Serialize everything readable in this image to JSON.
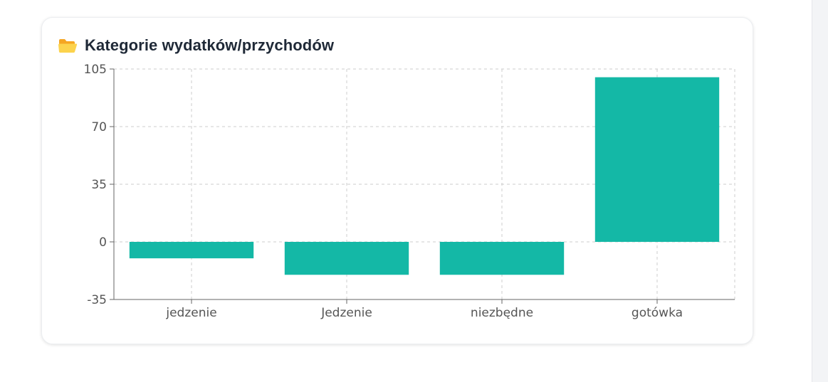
{
  "card": {
    "title": "Kategorie wydatków/przychodów",
    "icon": "folder-open-icon"
  },
  "colors": {
    "bar": "#14b8a6",
    "grid": "#cccccc",
    "axis": "#666666"
  },
  "chart_data": {
    "type": "bar",
    "title": "Kategorie wydatków/przychodów",
    "categories": [
      "jedzenie",
      "Jedzenie",
      "niezbędne",
      "gotówka"
    ],
    "values": [
      -10,
      -20,
      -20,
      100
    ],
    "yticks": [
      -35,
      0,
      35,
      70,
      105
    ],
    "ylim": [
      -35,
      105
    ],
    "xlabel": "",
    "ylabel": "",
    "grid": true,
    "legend": "none"
  }
}
